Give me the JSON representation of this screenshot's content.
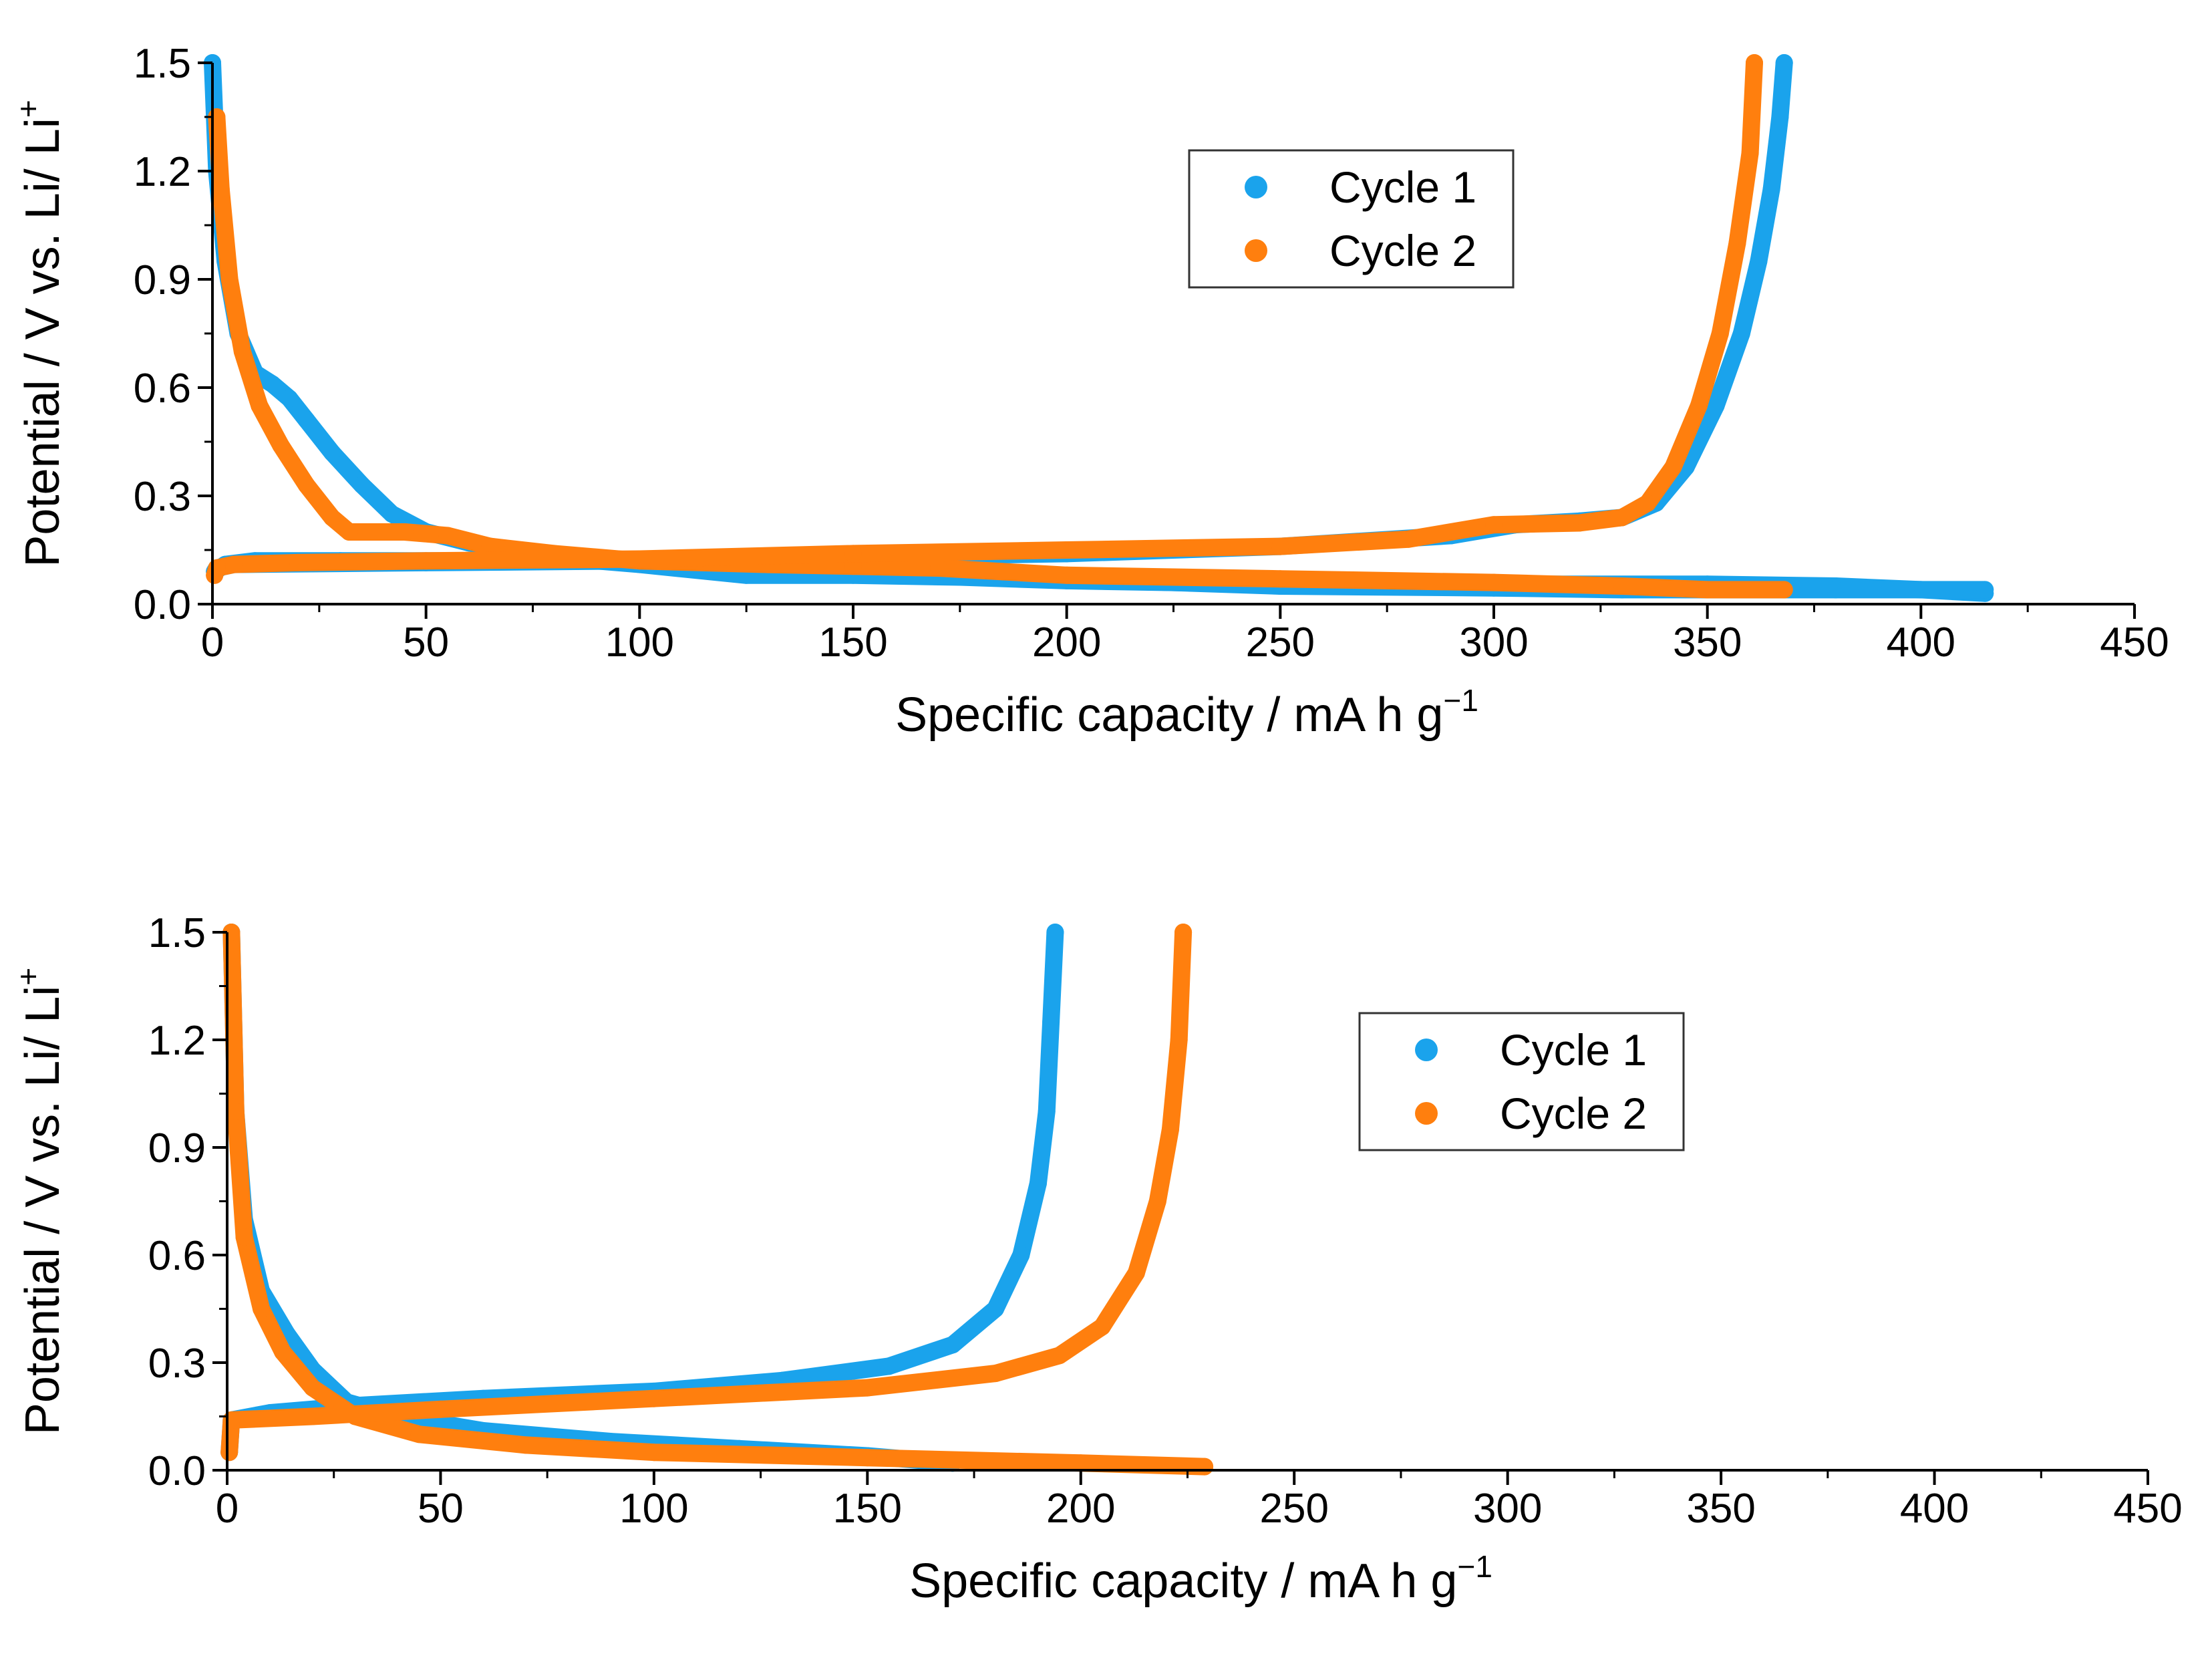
{
  "figure": {
    "description_free": true
  },
  "colors": {
    "cycle1": "#1aa3ec",
    "cycle2": "#ff7f0e",
    "axis": "#000000"
  },
  "chart_data": [
    {
      "type": "scatter",
      "panel": "top",
      "xlabel": "Specific capacity / mA h g",
      "xlabel_sup": "−1",
      "ylabel": "Potential / V vs. Li/ Li",
      "ylabel_sup": "+",
      "xlim": [
        0,
        450
      ],
      "ylim": [
        0,
        1.5
      ],
      "xticks": [
        0,
        50,
        100,
        150,
        200,
        250,
        300,
        350,
        400,
        450
      ],
      "yticks": [
        0.0,
        0.3,
        0.6,
        0.9,
        1.2,
        1.5
      ],
      "xtick_labels": [
        "0",
        "50",
        "100",
        "150",
        "200",
        "250",
        "300",
        "350",
        "400",
        "450"
      ],
      "ytick_labels": [
        "0.0",
        "0.3",
        "0.6",
        "0.9",
        "1.2",
        "1.5"
      ],
      "legend": {
        "position": "upper-middle",
        "entries": [
          "Cycle 1",
          "Cycle 2"
        ]
      },
      "series": [
        {
          "name": "Cycle 1",
          "color": "#1aa3ec",
          "discharge": [
            [
              0,
              1.5
            ],
            [
              1,
              1.2
            ],
            [
              3,
              0.95
            ],
            [
              6,
              0.75
            ],
            [
              10,
              0.64
            ],
            [
              14,
              0.61
            ],
            [
              18,
              0.57
            ],
            [
              22,
              0.51
            ],
            [
              28,
              0.42
            ],
            [
              35,
              0.33
            ],
            [
              42,
              0.25
            ],
            [
              50,
              0.2
            ],
            [
              60,
              0.17
            ],
            [
              80,
              0.13
            ],
            [
              100,
              0.11
            ],
            [
              125,
              0.08
            ],
            [
              150,
              0.08
            ],
            [
              175,
              0.075
            ],
            [
              200,
              0.065
            ],
            [
              250,
              0.055
            ],
            [
              300,
              0.055
            ],
            [
              350,
              0.055
            ],
            [
              380,
              0.05
            ],
            [
              400,
              0.04
            ],
            [
              415,
              0.03
            ]
          ],
          "charge": [
            [
              415,
              0.04
            ],
            [
              380,
              0.04
            ],
            [
              330,
              0.04
            ],
            [
              300,
              0.045
            ],
            [
              250,
              0.05
            ],
            [
              200,
              0.07
            ],
            [
              170,
              0.09
            ],
            [
              150,
              0.1
            ],
            [
              120,
              0.12
            ],
            [
              100,
              0.12
            ],
            [
              60,
              0.12
            ],
            [
              30,
              0.12
            ],
            [
              10,
              0.12
            ],
            [
              3,
              0.11
            ],
            [
              0.5,
              0.09
            ],
            [
              1,
              0.1
            ],
            [
              5,
              0.11
            ],
            [
              50,
              0.115
            ],
            [
              100,
              0.12
            ],
            [
              150,
              0.13
            ],
            [
              200,
              0.14
            ],
            [
              250,
              0.16
            ],
            [
              290,
              0.19
            ],
            [
              305,
              0.22
            ],
            [
              320,
              0.23
            ],
            [
              330,
              0.24
            ],
            [
              338,
              0.28
            ],
            [
              345,
              0.38
            ],
            [
              352,
              0.55
            ],
            [
              358,
              0.75
            ],
            [
              362,
              0.95
            ],
            [
              365,
              1.15
            ],
            [
              367,
              1.35
            ],
            [
              368,
              1.5
            ]
          ]
        },
        {
          "name": "Cycle 2",
          "color": "#ff7f0e",
          "discharge": [
            [
              1,
              1.35
            ],
            [
              2,
              1.15
            ],
            [
              4,
              0.9
            ],
            [
              7,
              0.7
            ],
            [
              11,
              0.55
            ],
            [
              16,
              0.44
            ],
            [
              22,
              0.33
            ],
            [
              28,
              0.24
            ],
            [
              32,
              0.2
            ],
            [
              45,
              0.2
            ],
            [
              55,
              0.19
            ],
            [
              65,
              0.16
            ],
            [
              80,
              0.14
            ],
            [
              100,
              0.12
            ],
            [
              130,
              0.11
            ],
            [
              150,
              0.105
            ],
            [
              170,
              0.1
            ],
            [
              185,
              0.09
            ],
            [
              200,
              0.08
            ],
            [
              250,
              0.07
            ],
            [
              300,
              0.06
            ],
            [
              330,
              0.05
            ],
            [
              350,
              0.04
            ],
            [
              368,
              0.04
            ]
          ],
          "charge": [
            [
              0.5,
              0.08
            ],
            [
              1,
              0.1
            ],
            [
              5,
              0.11
            ],
            [
              20,
              0.115
            ],
            [
              50,
              0.12
            ],
            [
              100,
              0.125
            ],
            [
              150,
              0.14
            ],
            [
              200,
              0.15
            ],
            [
              250,
              0.16
            ],
            [
              280,
              0.18
            ],
            [
              300,
              0.22
            ],
            [
              320,
              0.225
            ],
            [
              330,
              0.24
            ],
            [
              336,
              0.28
            ],
            [
              342,
              0.38
            ],
            [
              348,
              0.55
            ],
            [
              353,
              0.75
            ],
            [
              357,
              1.0
            ],
            [
              360,
              1.25
            ],
            [
              361,
              1.5
            ]
          ]
        }
      ]
    },
    {
      "type": "scatter",
      "panel": "bottom",
      "xlabel": "Specific capacity / mA h g",
      "xlabel_sup": "−1",
      "ylabel": "Potential / V vs. Li/ Li",
      "ylabel_sup": "+",
      "xlim": [
        0,
        450
      ],
      "ylim": [
        0,
        1.5
      ],
      "xticks": [
        0,
        50,
        100,
        150,
        200,
        250,
        300,
        350,
        400,
        450
      ],
      "yticks": [
        0.0,
        0.3,
        0.6,
        0.9,
        1.2,
        1.5
      ],
      "xtick_labels": [
        "0",
        "50",
        "100",
        "150",
        "200",
        "250",
        "300",
        "350",
        "400",
        "450"
      ],
      "ytick_labels": [
        "0.0",
        "0.3",
        "0.6",
        "0.9",
        "1.2",
        "1.5"
      ],
      "legend": {
        "position": "upper-middle",
        "entries": [
          "Cycle 1",
          "Cycle 2"
        ]
      },
      "series": [
        {
          "name": "Cycle 1",
          "color": "#1aa3ec",
          "discharge": [
            [
              1,
              1.5
            ],
            [
              2,
              1.0
            ],
            [
              4,
              0.7
            ],
            [
              8,
              0.5
            ],
            [
              14,
              0.38
            ],
            [
              20,
              0.28
            ],
            [
              28,
              0.19
            ],
            [
              40,
              0.15
            ],
            [
              60,
              0.11
            ],
            [
              90,
              0.08
            ],
            [
              120,
              0.06
            ],
            [
              150,
              0.04
            ],
            [
              170,
              0.02
            ]
          ],
          "charge": [
            [
              0.5,
              0.05
            ],
            [
              1,
              0.14
            ],
            [
              10,
              0.16
            ],
            [
              30,
              0.18
            ],
            [
              60,
              0.2
            ],
            [
              100,
              0.22
            ],
            [
              130,
              0.25
            ],
            [
              155,
              0.29
            ],
            [
              170,
              0.35
            ],
            [
              180,
              0.45
            ],
            [
              186,
              0.6
            ],
            [
              190,
              0.8
            ],
            [
              192,
              1.0
            ],
            [
              193,
              1.25
            ],
            [
              194,
              1.5
            ]
          ]
        },
        {
          "name": "Cycle 2",
          "color": "#ff7f0e",
          "discharge": [
            [
              1,
              1.5
            ],
            [
              2,
              1.0
            ],
            [
              4,
              0.65
            ],
            [
              8,
              0.45
            ],
            [
              13,
              0.33
            ],
            [
              20,
              0.23
            ],
            [
              30,
              0.15
            ],
            [
              45,
              0.1
            ],
            [
              70,
              0.07
            ],
            [
              100,
              0.05
            ],
            [
              150,
              0.035
            ],
            [
              200,
              0.02
            ],
            [
              229,
              0.01
            ]
          ],
          "charge": [
            [
              0.5,
              0.05
            ],
            [
              1,
              0.14
            ],
            [
              20,
              0.15
            ],
            [
              50,
              0.17
            ],
            [
              100,
              0.2
            ],
            [
              150,
              0.23
            ],
            [
              180,
              0.27
            ],
            [
              195,
              0.32
            ],
            [
              205,
              0.4
            ],
            [
              213,
              0.55
            ],
            [
              218,
              0.75
            ],
            [
              221,
              0.95
            ],
            [
              223,
              1.2
            ],
            [
              224,
              1.5
            ]
          ]
        }
      ]
    }
  ]
}
